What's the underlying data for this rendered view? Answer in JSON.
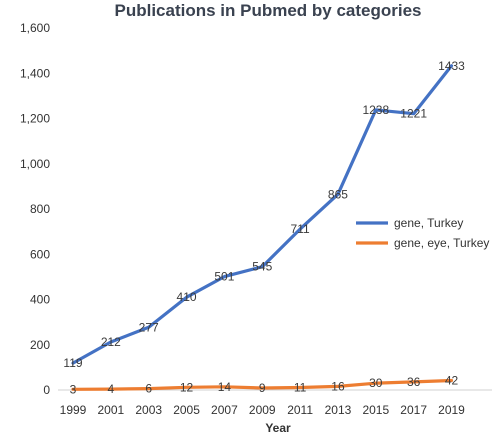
{
  "chart_data": {
    "type": "line",
    "title": "Publications in Pubmed by categories",
    "xlabel": "Year",
    "ylabel": "",
    "x": [
      "1999",
      "2001",
      "2003",
      "2005",
      "2007",
      "2009",
      "2011",
      "2013",
      "2015",
      "2017",
      "2019"
    ],
    "y_ticks": [
      "0",
      "200",
      "400",
      "600",
      "800",
      "1,000",
      "1,200",
      "1,400",
      "1,600"
    ],
    "ylim": [
      0,
      1600
    ],
    "grid": false,
    "legend_position": "right",
    "series": [
      {
        "name": "gene, Turkey",
        "color": "#4472C4",
        "values": [
          119,
          212,
          277,
          410,
          501,
          545,
          711,
          865,
          1238,
          1221,
          1433
        ],
        "labels": [
          "119",
          "212",
          "277",
          "410",
          "501",
          "545",
          "711",
          "865",
          "1238",
          "1221",
          "1433"
        ]
      },
      {
        "name": "gene, eye, Turkey",
        "color": "#ED7D31",
        "values": [
          3,
          4,
          6,
          12,
          14,
          9,
          11,
          16,
          30,
          36,
          42
        ],
        "labels": [
          "3",
          "4",
          "6",
          "12",
          "14",
          "9",
          "11",
          "16",
          "30",
          "36",
          "42"
        ]
      }
    ]
  }
}
